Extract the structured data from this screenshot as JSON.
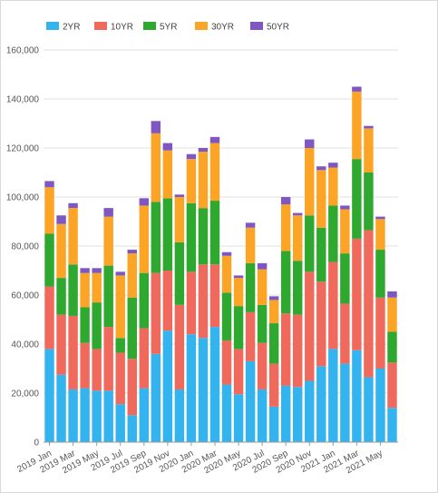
{
  "chart_data": {
    "type": "bar",
    "stacked": true,
    "title": "",
    "xlabel": "",
    "ylabel": "",
    "ylim": [
      0,
      160000
    ],
    "y_ticks": [
      "0",
      "20,000",
      "40,000",
      "60,000",
      "80,000",
      "100,000",
      "120,000",
      "140,000",
      "160,000"
    ],
    "y_tick_values": [
      0,
      20000,
      40000,
      60000,
      80000,
      100000,
      120000,
      140000,
      160000
    ],
    "grid": true,
    "legend_position": "top-left",
    "categories": [
      "2019 Jan",
      "2019 Feb",
      "2019 Mar",
      "2019 Apr",
      "2019 May",
      "2019 Jun",
      "2019 Jul",
      "2019 Aug",
      "2019 Sep",
      "2019 Oct",
      "2019 Nov",
      "2019 Dec",
      "2020 Jan",
      "2020 Feb",
      "2020 Mar",
      "2020 Apr",
      "2020 May",
      "2020 Jun",
      "2020 Jul",
      "2020 Aug",
      "2020 Sep",
      "2020 Oct",
      "2020 Nov",
      "2020 Dec",
      "2021 Jan",
      "2021 Feb",
      "2021 Mar",
      "2021 Apr",
      "2021 May",
      "2021 Jun"
    ],
    "x_tick_labels": [
      "2019 Jan",
      "2019 Mar",
      "2019 May",
      "2019 Jul",
      "2019 Sep",
      "2019 Nov",
      "2020 Jan",
      "2020 Mar",
      "2020 May",
      "2020 Jul",
      "2020 Sep",
      "2020 Nov",
      "2021 Jan",
      "2021 Mar",
      "2021 May"
    ],
    "series": [
      {
        "name": "2YR",
        "color": "#33b4ee",
        "values": [
          38000,
          27500,
          21500,
          22000,
          21000,
          21000,
          15500,
          11000,
          22000,
          36000,
          45500,
          21500,
          44000,
          42500,
          47000,
          23500,
          19500,
          33000,
          21500,
          14500,
          23000,
          22500,
          25000,
          31000,
          38000,
          32000,
          37500,
          26500,
          30000,
          14000
        ]
      },
      {
        "name": "10YR",
        "color": "#ef6a5c",
        "values": [
          25500,
          24500,
          30000,
          18500,
          17000,
          26000,
          21000,
          23000,
          24500,
          33000,
          24500,
          34500,
          25500,
          30000,
          25500,
          18000,
          18500,
          20000,
          19000,
          17500,
          29500,
          29500,
          44500,
          34500,
          35500,
          24500,
          45500,
          60000,
          29000,
          18500
        ]
      },
      {
        "name": "5YR",
        "color": "#2ea82e",
        "values": [
          21500,
          15000,
          21000,
          14500,
          19000,
          25000,
          6000,
          25000,
          22500,
          29000,
          29500,
          25500,
          28000,
          23000,
          26000,
          19500,
          17500,
          20000,
          15500,
          16500,
          25500,
          22000,
          23000,
          22000,
          23000,
          20500,
          32500,
          23500,
          19500,
          12500
        ]
      },
      {
        "name": "30YR",
        "color": "#fba426",
        "values": [
          19000,
          22000,
          23000,
          14000,
          12000,
          20000,
          25500,
          18000,
          27500,
          28000,
          19500,
          18500,
          18000,
          23000,
          23500,
          15000,
          11500,
          14500,
          14500,
          9500,
          19000,
          18500,
          27500,
          23500,
          15500,
          18000,
          27500,
          18000,
          12500,
          14000
        ]
      },
      {
        "name": "50YR",
        "color": "#7e57c2",
        "values": [
          2500,
          3500,
          2000,
          2000,
          2000,
          3500,
          1500,
          1500,
          3000,
          5000,
          3000,
          1000,
          2000,
          1500,
          2500,
          1500,
          1000,
          2000,
          2500,
          1500,
          3000,
          1000,
          3500,
          1500,
          2000,
          1500,
          2000,
          1000,
          1000,
          2500
        ]
      }
    ]
  }
}
